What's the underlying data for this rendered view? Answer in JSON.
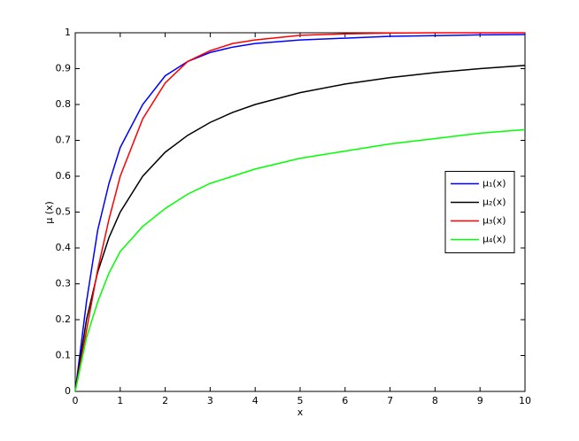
{
  "chart_data": {
    "type": "line",
    "xlabel": "x",
    "ylabel": "μ (x)",
    "x": [
      0,
      0.25,
      0.5,
      0.75,
      1,
      1.5,
      2,
      2.5,
      3,
      3.5,
      4,
      5,
      6,
      7,
      8,
      9,
      10
    ],
    "series": [
      {
        "name": "μ₁(x)",
        "color": "#0000ff",
        "values": [
          0,
          0.25,
          0.45,
          0.58,
          0.68,
          0.8,
          0.88,
          0.92,
          0.945,
          0.96,
          0.97,
          0.98,
          0.985,
          0.99,
          0.992,
          0.994,
          0.995
        ]
      },
      {
        "name": "μ₂(x)",
        "color": "#000000",
        "values": [
          0,
          0.2,
          0.333,
          0.429,
          0.5,
          0.6,
          0.667,
          0.714,
          0.75,
          0.778,
          0.8,
          0.833,
          0.857,
          0.875,
          0.889,
          0.9,
          0.909
        ]
      },
      {
        "name": "μ₃(x)",
        "color": "#ff0000",
        "values": [
          0,
          0.17,
          0.34,
          0.48,
          0.6,
          0.76,
          0.86,
          0.92,
          0.95,
          0.97,
          0.98,
          0.993,
          0.997,
          0.999,
          1,
          1,
          1
        ]
      },
      {
        "name": "μ₄(x)",
        "color": "#00ff00",
        "values": [
          0,
          0.15,
          0.25,
          0.33,
          0.39,
          0.46,
          0.51,
          0.55,
          0.58,
          0.6,
          0.62,
          0.65,
          0.67,
          0.69,
          0.705,
          0.72,
          0.73
        ]
      }
    ],
    "xlim": [
      0,
      10
    ],
    "xticks": [
      0,
      1,
      2,
      3,
      4,
      5,
      6,
      7,
      8,
      9,
      10
    ],
    "ylim": [
      0,
      1
    ],
    "yticks": [
      0,
      0.1,
      0.2,
      0.3,
      0.4,
      0.5,
      0.6,
      0.7,
      0.8,
      0.9,
      1
    ],
    "grid": false,
    "legend": "east"
  }
}
